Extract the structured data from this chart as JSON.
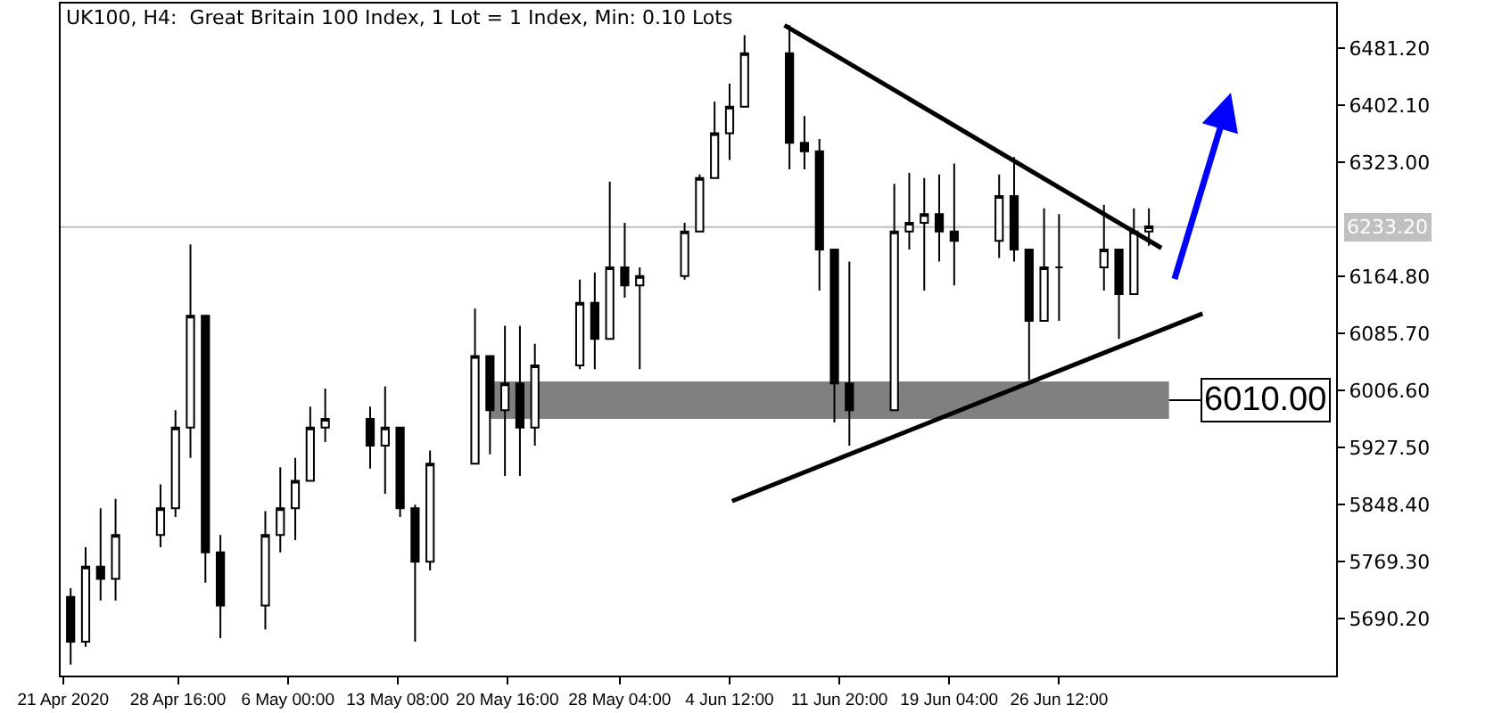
{
  "chart_data": {
    "type": "candlestick",
    "title": "UK100, H4:  Great Britain 100 Index, 1 Lot = 1 Index, Min: 0.10 Lots",
    "x": [
      "2020-04-21T12:00",
      "2020-04-22T12:00",
      "2020-04-23T12:00",
      "2020-04-24T12:00",
      "2020-04-27T12:00",
      "2020-04-28T12:00",
      "2020-04-29T12:00",
      "2020-04-30T12:00",
      "2020-05-01T12:00",
      "2020-05-04T12:00",
      "2020-05-05T12:00",
      "2020-05-06T12:00",
      "2020-05-07T12:00",
      "2020-05-08T12:00",
      "2020-05-11T12:00",
      "2020-05-12T12:00",
      "2020-05-13T12:00",
      "2020-05-14T12:00",
      "2020-05-15T12:00",
      "2020-05-18T12:00",
      "2020-05-19T12:00",
      "2020-05-20T12:00",
      "2020-05-21T12:00",
      "2020-05-22T12:00",
      "2020-05-25T12:00",
      "2020-05-26T12:00",
      "2020-05-27T12:00",
      "2020-05-28T12:00",
      "2020-05-29T12:00",
      "2020-06-01T12:00",
      "2020-06-02T12:00",
      "2020-06-03T12:00",
      "2020-06-04T12:00",
      "2020-06-05T12:00",
      "2020-06-08T12:00",
      "2020-06-09T12:00",
      "2020-06-10T12:00",
      "2020-06-11T12:00",
      "2020-06-12T12:00",
      "2020-06-15T12:00",
      "2020-06-16T12:00",
      "2020-06-17T12:00",
      "2020-06-18T12:00",
      "2020-06-19T12:00",
      "2020-06-22T12:00",
      "2020-06-23T12:00",
      "2020-06-24T12:00",
      "2020-06-25T12:00",
      "2020-06-26T12:00",
      "2020-06-29T12:00",
      "2020-06-30T12:00",
      "2020-07-01T12:00",
      "2020-07-02T12:00"
    ],
    "ohlc": [
      [
        5720,
        5732,
        5626,
        5658
      ],
      [
        5658,
        5789,
        5651,
        5762
      ],
      [
        5762,
        5843,
        5715,
        5745
      ],
      [
        5745,
        5856,
        5715,
        5806
      ],
      [
        5806,
        5876,
        5789,
        5843
      ],
      [
        5843,
        5979,
        5831,
        5955
      ],
      [
        5955,
        6209,
        5913,
        6110
      ],
      [
        6110,
        6110,
        5740,
        5782
      ],
      [
        5782,
        5806,
        5663,
        5708
      ],
      [
        5708,
        5839,
        5675,
        5806
      ],
      [
        5806,
        5900,
        5782,
        5843
      ],
      [
        5843,
        5913,
        5799,
        5881
      ],
      [
        5881,
        5984,
        5881,
        5955
      ],
      [
        5955,
        6009,
        5935,
        5967
      ],
      [
        5967,
        5984,
        5898,
        5930
      ],
      [
        5930,
        6012,
        5863,
        5955
      ],
      [
        5955,
        5955,
        5831,
        5843
      ],
      [
        5843,
        5848,
        5658,
        5769
      ],
      [
        5769,
        5923,
        5757,
        5905
      ],
      [
        5905,
        6120,
        5905,
        6054
      ],
      [
        6054,
        6054,
        5918,
        5979
      ],
      [
        5979,
        6096,
        5888,
        6016
      ],
      [
        6016,
        6096,
        5888,
        5955
      ],
      [
        5955,
        6071,
        5930,
        6041
      ],
      [
        6041,
        6160,
        6036,
        6128
      ],
      [
        6128,
        6170,
        6036,
        6078
      ],
      [
        6078,
        6296,
        6078,
        6177
      ],
      [
        6177,
        6239,
        6135,
        6152
      ],
      [
        6152,
        6177,
        6036,
        6165
      ],
      [
        6165,
        6239,
        6160,
        6227
      ],
      [
        6227,
        6306,
        6227,
        6301
      ],
      [
        6301,
        6407,
        6301,
        6363
      ],
      [
        6363,
        6432,
        6326,
        6400
      ],
      [
        6400,
        6499,
        6400,
        6474
      ],
      [
        6474,
        6513,
        6313,
        6350
      ],
      [
        6350,
        6387,
        6313,
        6338
      ],
      [
        6338,
        6355,
        6145,
        6202
      ],
      [
        6202,
        6202,
        5962,
        6016
      ],
      [
        6016,
        6185,
        5930,
        5979
      ],
      [
        5979,
        6293,
        5979,
        6227
      ],
      [
        6227,
        6308,
        6202,
        6239
      ],
      [
        6239,
        6301,
        6145,
        6251
      ],
      [
        6251,
        6306,
        6185,
        6227
      ],
      [
        6227,
        6321,
        6152,
        6214
      ],
      [
        6214,
        6306,
        6190,
        6276
      ],
      [
        6276,
        6330,
        6185,
        6202
      ],
      [
        6202,
        6202,
        6021,
        6103
      ],
      [
        6103,
        6259,
        6103,
        6177
      ],
      [
        6177,
        6251,
        6103,
        6177
      ],
      [
        6177,
        6264,
        6145,
        6202
      ],
      [
        6202,
        6202,
        6078,
        6140
      ],
      [
        6140,
        6259,
        6140,
        6227
      ],
      [
        6227,
        6259,
        6207,
        6234
      ]
    ],
    "color": "#000000",
    "series": [
      {
        "type": "line",
        "color": "#000000",
        "x": [
          "2020-06-08T04:00",
          "2020-07-03T08:00"
        ],
        "values": [
          6513,
          6204
        ]
      },
      {
        "type": "line",
        "color": "#000000",
        "x": [
          "2020-06-04T16:00",
          "2020-07-06T02:00"
        ],
        "values": [
          5853,
          6113
        ]
      }
    ],
    "ref_lines": [
      {
        "axis": "y",
        "value": 6233.2,
        "label": "6233.20",
        "color": "#c0c0c0"
      }
    ],
    "bands": [
      {
        "axis": "y",
        "from": 5967,
        "to": 6019,
        "label": "6010.00",
        "color": "#808080"
      }
    ],
    "xlim": [
      "2020-04-20T20:00",
      "2020-07-15T00:00"
    ],
    "xticks": [
      {
        "value": "2020-04-21T00:00",
        "label": "21 Apr 2020"
      },
      {
        "value": "2020-04-28T16:00",
        "label": "28 Apr 16:00"
      },
      {
        "value": "2020-05-06T00:00",
        "label": "6 May 00:00"
      },
      {
        "value": "2020-05-13T08:00",
        "label": "13 May 08:00"
      },
      {
        "value": "2020-05-20T16:00",
        "label": "20 May 16:00"
      },
      {
        "value": "2020-05-28T04:00",
        "label": "28 May 04:00"
      },
      {
        "value": "2020-06-04T12:00",
        "label": "4 Jun 12:00"
      },
      {
        "value": "2020-06-11T20:00",
        "label": "11 Jun 20:00"
      },
      {
        "value": "2020-06-19T04:00",
        "label": "19 Jun 04:00"
      },
      {
        "value": "2020-06-26T12:00",
        "label": "26 Jun 12:00"
      }
    ],
    "ylim": [
      5611,
      6543
    ],
    "yticks": [
      {
        "value": 5690.2,
        "label": "5690.20"
      },
      {
        "value": 5769.3,
        "label": "5769.30"
      },
      {
        "value": 5848.4,
        "label": "5848.40"
      },
      {
        "value": 5927.5,
        "label": "5927.50"
      },
      {
        "value": 6006.6,
        "label": "6006.60"
      },
      {
        "value": 6085.7,
        "label": "6085.70"
      },
      {
        "value": 6164.8,
        "label": "6164.80"
      },
      {
        "value": 6323.0,
        "label": "6323.00"
      },
      {
        "value": 6402.1,
        "label": "6402.10"
      },
      {
        "value": 6481.2,
        "label": "6481.20"
      }
    ],
    "grid": false
  }
}
